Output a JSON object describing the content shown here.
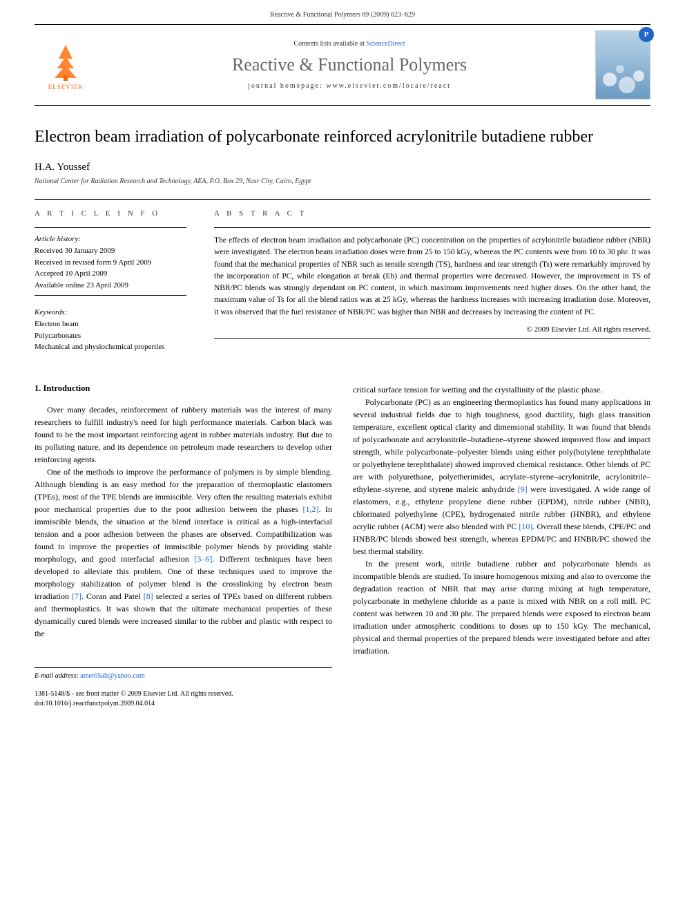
{
  "header": {
    "citation": "Reactive & Functional Polymers 69 (2009) 623–629"
  },
  "banner": {
    "publisher_name": "ELSEVIER",
    "contents_prefix": "Contents lists available at ",
    "contents_link": "ScienceDirect",
    "journal_title": "Reactive & Functional Polymers",
    "homepage_prefix": "journal homepage: ",
    "homepage_url": "www.elsevier.com/locate/react"
  },
  "article": {
    "title": "Electron beam irradiation of polycarbonate reinforced acrylonitrile butadiene rubber",
    "author": "H.A. Youssef",
    "affiliation": "National Center for Radiation Research and Technology, AEA, P.O. Box 29, Nasr City, Cairo, Egypt"
  },
  "info": {
    "heading": "A R T I C L E   I N F O",
    "history_heading": "Article history:",
    "history": [
      "Received 30 January 2009",
      "Received in revised form 9 April 2009",
      "Accepted 10 April 2009",
      "Available online 23 April 2009"
    ],
    "keywords_heading": "Keywords:",
    "keywords": [
      "Electron beam",
      "Polycarbonates",
      "Mechanical and physiochemical properties"
    ]
  },
  "abstract": {
    "heading": "A B S T R A C T",
    "text": "The effects of electron beam irradiation and polycarbonate (PC) concentration on the properties of acrylonitrile butadiene rubber (NBR) were investigated. The electron beam irradiation doses were from 25 to 150 kGy, whereas the PC contents were from 10 to 30 phr. It was found that the mechanical properties of NBR such as tensile strength (TS), hardness and tear strength (Ts) were remarkably improved by the incorporation of PC, while elongation at break (Eb) and thermal properties were decreased. However, the improvement in TS of NBR/PC blends was strongly dependant on PC content, in which maximum improvements need higher doses. On the other hand, the maximum value of Ts for all the blend ratios was at 25 kGy, whereas the hardness increases with increasing irradiation dose. Moreover, it was observed that the fuel resistance of NBR/PC was higher than NBR and decreases by increasing the content of PC.",
    "copyright": "© 2009 Elsevier Ltd. All rights reserved."
  },
  "body": {
    "section1_heading": "1. Introduction",
    "col1_paras": [
      "Over many decades, reinforcement of rubbery materials was the interest of many researchers to fulfill industry's need for high performance materials. Carbon black was found to be the most important reinforcing agent in rubber materials industry. But due to its polluting nature, and its dependence on petroleum made researchers to develop other reinforcing agents.",
      "One of the methods to improve the performance of polymers is by simple blending. Although blending is an easy method for the preparation of thermoplastic elastomers (TPEs), most of the TPE blends are immiscible. Very often the resulting materials exhibit poor mechanical properties due to the poor adhesion between the phases [1,2]. In immiscible blends, the situation at the blend interface is critical as a high-interfacial tension and a poor adhesion between the phases are observed. Compatibilization was found to improve the properties of immiscible polymer blends by providing stable morphology, and good interfacial adhesion [3–6]. Different techniques have been developed to alleviate this problem. One of these techniques used to improve the morphology stabilization of polymer blend is the crosslinking by electron beam irradiation [7]. Coran and Patel [8] selected a series of TPEs based on different rubbers and thermoplastics. It was shown that the ultimate mechanical properties of these dynamically cured blends were increased similar to the rubber and plastic with respect to the"
    ],
    "col2_paras": [
      "critical surface tension for wetting and the crystallinity of the plastic phase.",
      "Polycarbonate (PC) as an engineering thermoplastics has found many applications in several industrial fields due to high toughness, good ductility, high glass transition temperature, excellent optical clarity and dimensional stability. It was found that blends of polycarbonate and acrylonitrile–butadiene–styrene showed improved flow and impact strength, while polycarbonate–polyester blends using either poly(butylene terephthalate or polyethylene terephthalate) showed improved chemical resistance. Other blends of PC are with polyurethane, polyetherimides, acrylate–styrene–acrylonitrile, acrylonitrile–ethylene–styrene, and styrene maleic anhydride [9] were investigated. A wide range of elastomers, e.g., ethylene propylene diene rubber (EPDM), nitrile rubber (NBR), chlorinated polyethylene (CPE), hydrogenated nitrile rubber (HNBR), and ethylene acrylic rubber (ACM) were also blended with PC [10]. Overall these blends, CPE/PC and HNBR/PC blends showed best strength, whereas EPDM/PC and HNBR/PC showed the best thermal stability.",
      "In the present work, nitrile butadiene rubber and polycarbonate blends as incompatible blends are studied. To insure homogenous mixing and also to overcome the degradation reaction of NBR that may arise during mixing at high temperature, polycarbonate in methylene chloride as a paste is mixed with NBR on a roll mill. PC content was between 10 and 30 phr. The prepared blends were exposed to electron beam irradiation under atmospheric conditions to doses up to 150 kGy. The mechanical, physical and thermal properties of the prepared blends were investigated before and after irradiation."
    ]
  },
  "footer": {
    "email_label": "E-mail address: ",
    "email": "amer05ali@yahoo.com",
    "issn_line": "1381-5148/$ - see front matter © 2009 Elsevier Ltd. All rights reserved.",
    "doi_line": "doi:10.1016/j.reactfunctpolym.2009.04.014"
  },
  "colors": {
    "link": "#1e66c8",
    "publisher": "#ff6600",
    "journal_title": "#666666",
    "text": "#000000",
    "background": "#ffffff"
  }
}
